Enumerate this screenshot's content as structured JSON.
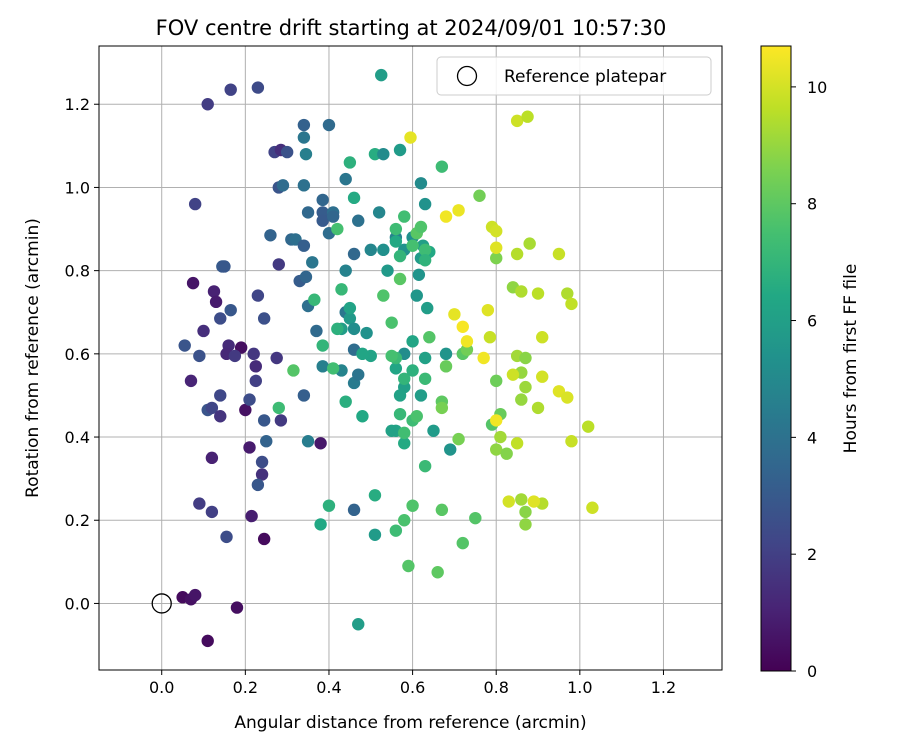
{
  "chart_data": {
    "type": "scatter",
    "title": "FOV centre drift starting at 2024/09/01 10:57:30",
    "xlabel": "Angular distance from reference (arcmin)",
    "ylabel": "Rotation from reference (arcmin)",
    "xlim": [
      -0.15,
      1.34
    ],
    "ylim": [
      -0.16,
      1.34
    ],
    "xticks": [
      "0.0",
      "0.2",
      "0.4",
      "0.6",
      "0.8",
      "1.0",
      "1.2"
    ],
    "yticks": [
      "0.0",
      "0.2",
      "0.4",
      "0.6",
      "0.8",
      "1.0",
      "1.2"
    ],
    "grid": true,
    "legend": {
      "label": "Reference platepar",
      "placement": "upper right",
      "marker": "open circle"
    },
    "reference_point": [
      0.0,
      0.0
    ],
    "colorbar": {
      "label": "Hours from first FF file",
      "range": [
        0,
        10.7
      ],
      "ticks": [
        "0",
        "2",
        "4",
        "6",
        "8",
        "10"
      ],
      "colormap": "viridis"
    },
    "points": [
      [
        0.05,
        0.015,
        0.3
      ],
      [
        0.07,
        0.01,
        0.5
      ],
      [
        0.08,
        0.02,
        0.6
      ],
      [
        0.11,
        -0.09,
        0.3
      ],
      [
        0.18,
        -0.01,
        0.4
      ],
      [
        0.245,
        0.155,
        0.3
      ],
      [
        0.19,
        0.615,
        0.4
      ],
      [
        0.2,
        0.465,
        0.5
      ],
      [
        0.21,
        0.375,
        0.8
      ],
      [
        0.215,
        0.21,
        0.9
      ],
      [
        0.07,
        0.535,
        1.1
      ],
      [
        0.075,
        0.77,
        0.6
      ],
      [
        0.1,
        0.655,
        1.4
      ],
      [
        0.12,
        0.35,
        1.0
      ],
      [
        0.125,
        0.75,
        1.0
      ],
      [
        0.13,
        0.725,
        0.8
      ],
      [
        0.16,
        0.62,
        1.3
      ],
      [
        0.155,
        0.6,
        1.2
      ],
      [
        0.175,
        0.595,
        1.8
      ],
      [
        0.22,
        0.6,
        1.7
      ],
      [
        0.24,
        0.31,
        1.5
      ],
      [
        0.21,
        0.49,
        2.5
      ],
      [
        0.11,
        0.465,
        2.8
      ],
      [
        0.12,
        0.47,
        2.2
      ],
      [
        0.14,
        0.45,
        1.6
      ],
      [
        0.14,
        0.5,
        2.3
      ],
      [
        0.09,
        0.24,
        1.9
      ],
      [
        0.12,
        0.22,
        2.0
      ],
      [
        0.155,
        0.16,
        2.5
      ],
      [
        0.09,
        0.595,
        2.7
      ],
      [
        0.055,
        0.62,
        2.8
      ],
      [
        0.14,
        0.685,
        2.5
      ],
      [
        0.165,
        0.705,
        2.9
      ],
      [
        0.145,
        0.81,
        3.0
      ],
      [
        0.15,
        0.81,
        2.9
      ],
      [
        0.08,
        0.96,
        2.1
      ],
      [
        0.11,
        1.2,
        1.9
      ],
      [
        0.165,
        1.235,
        2.1
      ],
      [
        0.23,
        1.24,
        2.4
      ],
      [
        0.225,
        0.57,
        1.3
      ],
      [
        0.225,
        0.535,
        2.0
      ],
      [
        0.23,
        0.74,
        2.2
      ],
      [
        0.245,
        0.685,
        2.6
      ],
      [
        0.245,
        0.44,
        2.9
      ],
      [
        0.24,
        0.34,
        2.5
      ],
      [
        0.23,
        0.285,
        2.9
      ],
      [
        0.25,
        0.39,
        3.4
      ],
      [
        0.26,
        0.885,
        3.4
      ],
      [
        0.275,
        0.59,
        1.7
      ],
      [
        0.28,
        0.815,
        1.8
      ],
      [
        0.285,
        0.44,
        1.8
      ],
      [
        0.27,
        1.085,
        2.1
      ],
      [
        0.285,
        1.09,
        1.4
      ],
      [
        0.3,
        1.085,
        2.7
      ],
      [
        0.28,
        1.0,
        2.8
      ],
      [
        0.29,
        1.005,
        3.8
      ],
      [
        0.31,
        0.875,
        3.6
      ],
      [
        0.32,
        0.875,
        3.9
      ],
      [
        0.33,
        0.775,
        3.1
      ],
      [
        0.34,
        0.86,
        3.2
      ],
      [
        0.34,
        1.005,
        4.0
      ],
      [
        0.34,
        1.15,
        3.3
      ],
      [
        0.34,
        1.12,
        4.2
      ],
      [
        0.345,
        1.08,
        4.6
      ],
      [
        0.345,
        0.785,
        3.5
      ],
      [
        0.35,
        0.715,
        3.9
      ],
      [
        0.36,
        0.82,
        4.2
      ],
      [
        0.35,
        0.94,
        3.6
      ],
      [
        0.34,
        0.5,
        3.2
      ],
      [
        0.35,
        0.39,
        4.5
      ],
      [
        0.38,
        0.385,
        0.7
      ],
      [
        0.37,
        0.655,
        3.7
      ],
      [
        0.385,
        0.57,
        4.6
      ],
      [
        0.385,
        0.94,
        3.1
      ],
      [
        0.385,
        0.92,
        3.0
      ],
      [
        0.385,
        0.97,
        3.5
      ],
      [
        0.4,
        0.89,
        3.8
      ],
      [
        0.4,
        1.15,
        3.7
      ],
      [
        0.41,
        0.94,
        3.9
      ],
      [
        0.41,
        0.93,
        3.5
      ],
      [
        0.44,
        1.02,
        4.2
      ],
      [
        0.44,
        0.8,
        4.7
      ],
      [
        0.44,
        0.7,
        4.2
      ],
      [
        0.43,
        0.56,
        4.8
      ],
      [
        0.46,
        0.84,
        3.6
      ],
      [
        0.46,
        0.61,
        3.8
      ],
      [
        0.47,
        0.92,
        4.0
      ],
      [
        0.46,
        0.53,
        4.4
      ],
      [
        0.47,
        0.55,
        4.1
      ],
      [
        0.46,
        0.225,
        3.4
      ],
      [
        0.45,
        0.685,
        5.7
      ],
      [
        0.46,
        0.66,
        5.2
      ],
      [
        0.43,
        0.66,
        5.9
      ],
      [
        0.49,
        0.65,
        5.4
      ],
      [
        0.5,
        0.85,
        4.9
      ],
      [
        0.51,
        1.08,
        6.6
      ],
      [
        0.525,
        1.27,
        5.9
      ],
      [
        0.53,
        0.85,
        5.3
      ],
      [
        0.53,
        1.08,
        5.1
      ],
      [
        0.52,
        0.94,
        4.9
      ],
      [
        0.54,
        0.8,
        5.7
      ],
      [
        0.56,
        0.88,
        4.7
      ],
      [
        0.57,
        1.09,
        5.8
      ],
      [
        0.58,
        0.85,
        5.4
      ],
      [
        0.58,
        0.6,
        5.2
      ],
      [
        0.6,
        0.88,
        5.3
      ],
      [
        0.61,
        0.74,
        5.6
      ],
      [
        0.615,
        0.79,
        5.5
      ],
      [
        0.62,
        1.01,
        5.1
      ],
      [
        0.63,
        0.96,
        5.4
      ],
      [
        0.62,
        0.83,
        5.8
      ],
      [
        0.625,
        0.86,
        6.0
      ],
      [
        0.64,
        0.845,
        6.4
      ],
      [
        0.635,
        0.71,
        5.9
      ],
      [
        0.68,
        0.6,
        5.5
      ],
      [
        0.69,
        0.37,
        5.5
      ],
      [
        0.62,
        0.5,
        5.9
      ],
      [
        0.6,
        0.63,
        6.3
      ],
      [
        0.63,
        0.59,
        6.1
      ],
      [
        0.65,
        0.415,
        5.8
      ],
      [
        0.58,
        0.52,
        6.0
      ],
      [
        0.56,
        0.565,
        6.3
      ],
      [
        0.57,
        0.5,
        6.1
      ],
      [
        0.56,
        0.415,
        6.2
      ],
      [
        0.58,
        0.385,
        6.5
      ],
      [
        0.55,
        0.415,
        6.1
      ],
      [
        0.51,
        0.165,
        5.8
      ],
      [
        0.45,
        0.71,
        6.2
      ],
      [
        0.46,
        0.975,
        6.5
      ],
      [
        0.45,
        1.06,
        6.8
      ],
      [
        0.44,
        0.485,
        6.7
      ],
      [
        0.48,
        0.45,
        6.4
      ],
      [
        0.5,
        0.595,
        6.2
      ],
      [
        0.48,
        0.6,
        6.3
      ],
      [
        0.47,
        -0.05,
        5.9
      ],
      [
        0.51,
        0.26,
        6.6
      ],
      [
        0.42,
        0.66,
        6.8
      ],
      [
        0.43,
        0.755,
        7.1
      ],
      [
        0.41,
        0.565,
        7.4
      ],
      [
        0.42,
        0.9,
        7.5
      ],
      [
        0.38,
        0.19,
        6.4
      ],
      [
        0.4,
        0.235,
        6.8
      ],
      [
        0.385,
        0.62,
        7.0
      ],
      [
        0.365,
        0.73,
        7.1
      ],
      [
        0.315,
        0.56,
        7.8
      ],
      [
        0.28,
        0.47,
        7.3
      ],
      [
        0.56,
        0.87,
        6.4
      ],
      [
        0.56,
        0.9,
        7.3
      ],
      [
        0.57,
        0.835,
        7.0
      ],
      [
        0.58,
        0.93,
        7.4
      ],
      [
        0.6,
        0.86,
        7.5
      ],
      [
        0.61,
        0.89,
        7.9
      ],
      [
        0.62,
        0.905,
        7.7
      ],
      [
        0.63,
        0.85,
        7.3
      ],
      [
        0.63,
        0.825,
        6.9
      ],
      [
        0.67,
        1.05,
        7.3
      ],
      [
        0.56,
        0.59,
        7.2
      ],
      [
        0.58,
        0.54,
        7.0
      ],
      [
        0.6,
        0.56,
        6.8
      ],
      [
        0.63,
        0.54,
        7.2
      ],
      [
        0.6,
        0.44,
        7.3
      ],
      [
        0.61,
        0.45,
        7.6
      ],
      [
        0.57,
        0.455,
        7.1
      ],
      [
        0.58,
        0.41,
        7.4
      ],
      [
        0.63,
        0.33,
        7.2
      ],
      [
        0.55,
        0.595,
        7.5
      ],
      [
        0.53,
        0.74,
        7.7
      ],
      [
        0.55,
        0.675,
        7.6
      ],
      [
        0.57,
        0.78,
        7.9
      ],
      [
        0.56,
        0.175,
        7.3
      ],
      [
        0.58,
        0.2,
        7.6
      ],
      [
        0.6,
        0.235,
        7.7
      ],
      [
        0.59,
        0.09,
        7.8
      ],
      [
        0.66,
        0.075,
        8.0
      ],
      [
        0.64,
        0.64,
        7.8
      ],
      [
        0.67,
        0.485,
        8.0
      ],
      [
        0.68,
        0.57,
        8.2
      ],
      [
        0.67,
        0.47,
        8.5
      ],
      [
        0.67,
        0.225,
        7.9
      ],
      [
        0.72,
        0.145,
        7.8
      ],
      [
        0.75,
        0.205,
        7.8
      ],
      [
        0.72,
        0.6,
        7.9
      ],
      [
        0.73,
        0.61,
        8.4
      ],
      [
        0.71,
        0.395,
        8.5
      ],
      [
        0.76,
        0.98,
        8.4
      ],
      [
        0.8,
        0.83,
        8.6
      ],
      [
        0.8,
        0.535,
        8.3
      ],
      [
        0.81,
        0.455,
        8.2
      ],
      [
        0.79,
        0.43,
        7.8
      ],
      [
        0.8,
        0.37,
        8.9
      ],
      [
        0.825,
        0.36,
        8.7
      ],
      [
        0.81,
        0.4,
        9.2
      ],
      [
        0.85,
        0.595,
        9.2
      ],
      [
        0.86,
        0.555,
        9.0
      ],
      [
        0.84,
        0.76,
        8.9
      ],
      [
        0.87,
        0.59,
        8.8
      ],
      [
        0.87,
        0.52,
        9.1
      ],
      [
        0.86,
        0.49,
        9.0
      ],
      [
        0.87,
        0.22,
        8.8
      ],
      [
        0.87,
        0.19,
        8.9
      ],
      [
        0.86,
        0.25,
        9.2
      ],
      [
        0.85,
        0.385,
        9.7
      ],
      [
        0.84,
        0.55,
        9.9
      ],
      [
        0.85,
        0.84,
        9.5
      ],
      [
        0.86,
        0.75,
        9.4
      ],
      [
        0.88,
        0.865,
        9.3
      ],
      [
        0.9,
        0.745,
        9.6
      ],
      [
        0.9,
        0.47,
        9.4
      ],
      [
        0.91,
        0.64,
        9.9
      ],
      [
        0.91,
        0.545,
        10.0
      ],
      [
        0.91,
        0.24,
        9.5
      ],
      [
        0.95,
        0.51,
        10.2
      ],
      [
        0.97,
        0.495,
        10.1
      ],
      [
        0.95,
        0.84,
        9.8
      ],
      [
        0.97,
        0.745,
        9.4
      ],
      [
        0.98,
        0.72,
        9.7
      ],
      [
        0.98,
        0.39,
        9.8
      ],
      [
        1.02,
        0.425,
        9.6
      ],
      [
        1.03,
        0.23,
        9.9
      ],
      [
        0.79,
        0.905,
        9.9
      ],
      [
        0.8,
        0.855,
        10.2
      ],
      [
        0.8,
        0.895,
        10.0
      ],
      [
        0.8,
        0.44,
        10.5
      ],
      [
        0.78,
        0.705,
        10.2
      ],
      [
        0.785,
        0.64,
        9.8
      ],
      [
        0.77,
        0.59,
        10.5
      ],
      [
        0.73,
        0.63,
        10.5
      ],
      [
        0.72,
        0.665,
        10.6
      ],
      [
        0.7,
        0.695,
        10.3
      ],
      [
        0.71,
        0.945,
        10.4
      ],
      [
        0.68,
        0.93,
        10.5
      ],
      [
        0.595,
        1.12,
        10.3
      ],
      [
        0.85,
        1.16,
        9.9
      ],
      [
        0.875,
        1.17,
        9.6
      ],
      [
        0.83,
        0.245,
        10.0
      ],
      [
        0.89,
        0.245,
        10.2
      ]
    ]
  }
}
